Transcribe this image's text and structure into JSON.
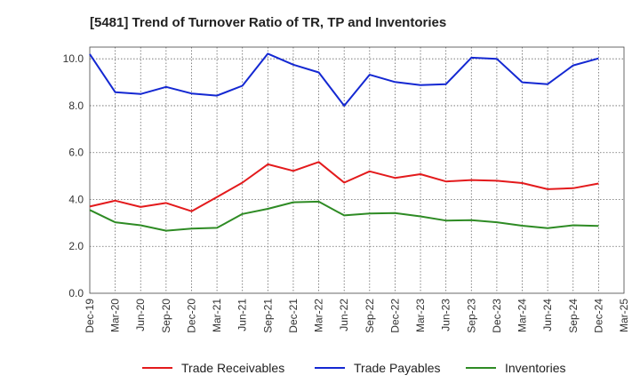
{
  "chart_data": {
    "type": "line",
    "title": "[5481]  Trend of Turnover Ratio of TR, TP and Inventories",
    "xlabel": "",
    "ylabel": "",
    "ylim": [
      0,
      10.5
    ],
    "yticks": [
      "0.0",
      "2.0",
      "4.0",
      "6.0",
      "8.0",
      "10.0"
    ],
    "categories": [
      "Dec-19",
      "Mar-20",
      "Jun-20",
      "Sep-20",
      "Dec-20",
      "Mar-21",
      "Jun-21",
      "Sep-21",
      "Dec-21",
      "Mar-22",
      "Jun-22",
      "Sep-22",
      "Dec-22",
      "Mar-23",
      "Jun-23",
      "Sep-23",
      "Dec-23",
      "Mar-24",
      "Jun-24",
      "Sep-24",
      "Dec-24",
      "Mar-25"
    ],
    "grid": true,
    "legend_position": "bottom",
    "series": [
      {
        "name": "Trade Receivables",
        "color": "#e31a1c",
        "values": [
          3.7,
          3.95,
          3.68,
          3.85,
          3.5,
          4.1,
          4.72,
          5.5,
          5.22,
          5.6,
          4.72,
          5.2,
          4.92,
          5.08,
          4.77,
          4.83,
          4.8,
          4.7,
          4.44,
          4.48,
          4.68,
          null
        ]
      },
      {
        "name": "Trade Payables",
        "color": "#1428d2",
        "values": [
          10.2,
          8.58,
          8.5,
          8.8,
          8.52,
          8.43,
          8.85,
          10.22,
          9.75,
          9.42,
          8.0,
          9.32,
          9.01,
          8.88,
          8.92,
          10.05,
          10.0,
          9.0,
          8.92,
          9.72,
          10.02,
          null
        ]
      },
      {
        "name": "Inventories",
        "color": "#2e8b24",
        "values": [
          3.55,
          3.03,
          2.9,
          2.67,
          2.76,
          2.79,
          3.38,
          3.6,
          3.88,
          3.91,
          3.32,
          3.4,
          3.42,
          3.28,
          3.1,
          3.12,
          3.03,
          2.88,
          2.78,
          2.9,
          2.87,
          null
        ]
      }
    ]
  }
}
